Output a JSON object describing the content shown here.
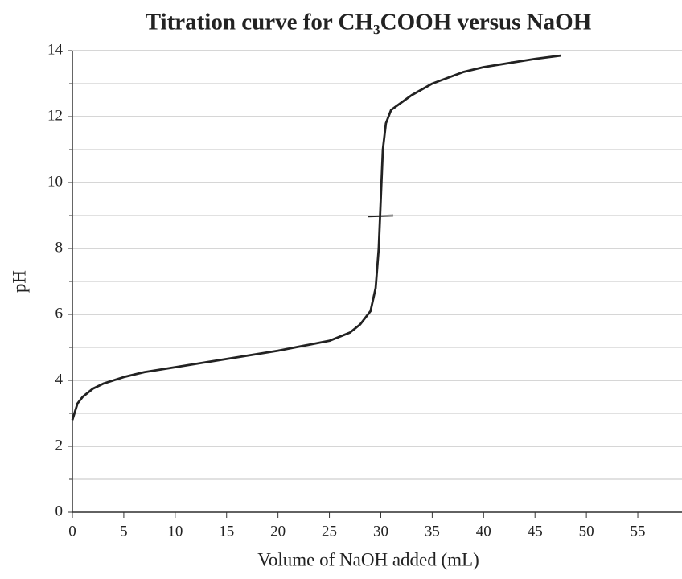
{
  "chart_data": {
    "type": "line",
    "title": "Titration curve for CH₃COOH versus NaOH",
    "x_label": "Volume of NaOH added (mL)",
    "y_label": "pH",
    "x": [
      0,
      0.5,
      1,
      2,
      3,
      5,
      7,
      10,
      15,
      20,
      25,
      27,
      28,
      29,
      29.5,
      29.8,
      30,
      30.2,
      30.5,
      31,
      33,
      35,
      38,
      40,
      45,
      47.5
    ],
    "series": [
      {
        "color": "#222222",
        "values": [
          2.8,
          3.3,
          3.5,
          3.75,
          3.9,
          4.1,
          4.25,
          4.4,
          4.65,
          4.9,
          5.2,
          5.45,
          5.7,
          6.1,
          6.8,
          8,
          9.5,
          11,
          11.8,
          12.2,
          12.65,
          13,
          13.35,
          13.5,
          13.75,
          13.85
        ]
      }
    ],
    "xlim": [
      0,
      59.3
    ],
    "ylim": [
      0,
      14
    ],
    "xticks": [
      0,
      5,
      10,
      15,
      20,
      25,
      30,
      35,
      40,
      45,
      50,
      55
    ],
    "yticks": [
      0,
      2,
      4,
      6,
      8,
      10,
      12,
      14
    ],
    "y_minor_ticks": [
      1,
      3,
      5,
      7,
      9,
      11,
      13
    ],
    "grid": true
  }
}
